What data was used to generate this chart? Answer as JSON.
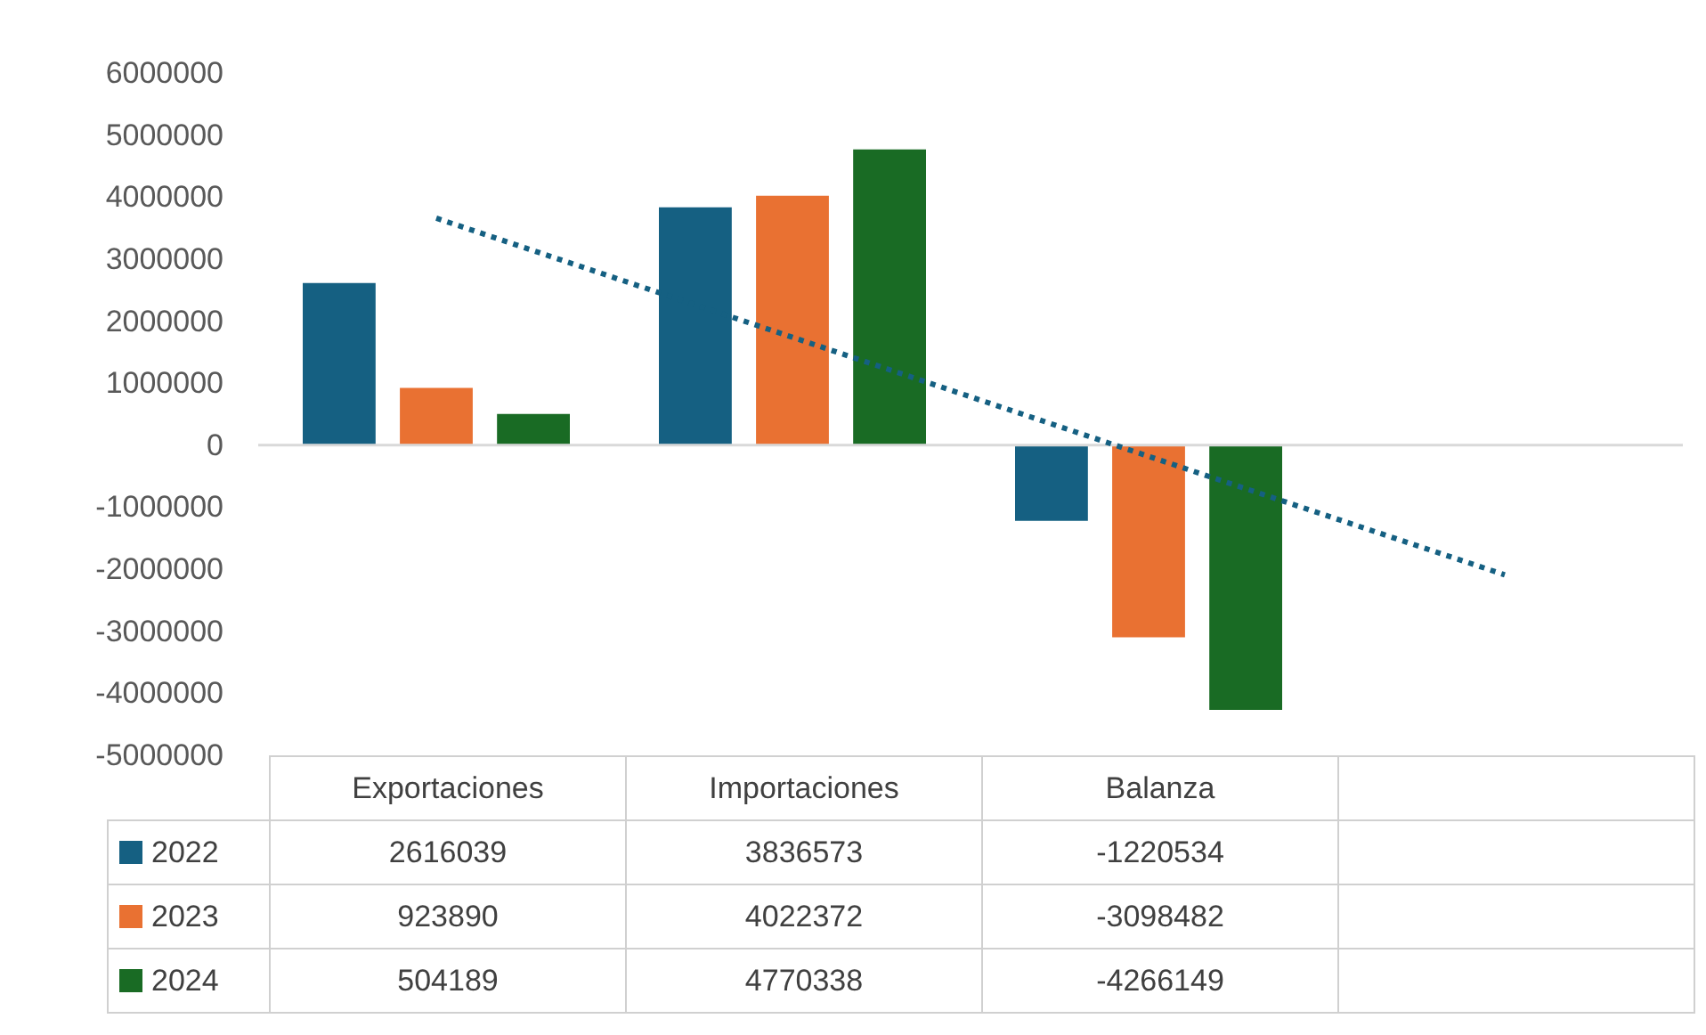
{
  "chart_data": {
    "type": "bar",
    "categories": [
      "Exportaciones",
      "Importaciones",
      "Balanza",
      null
    ],
    "series": [
      {
        "name": "2022",
        "color": "#156082",
        "values": [
          2616039,
          3836573,
          -1220534,
          null
        ],
        "value_labels": [
          "2616039",
          "3836573",
          "-1220534",
          null
        ]
      },
      {
        "name": "2023",
        "color": "#e97132",
        "values": [
          923890,
          4022372,
          -3098482,
          null
        ],
        "value_labels": [
          "923890",
          "4022372",
          "-3098482",
          null
        ]
      },
      {
        "name": "2024",
        "color": "#196b24",
        "values": [
          504189,
          4770338,
          -4266149,
          null
        ],
        "value_labels": [
          "504189",
          "4770338",
          "-4266149",
          null
        ]
      },
      {
        "type": "line",
        "color": "#156082",
        "line_style": "dotted",
        "values": [
          3660000,
          1740000,
          -180000,
          -2090000
        ]
      }
    ],
    "ylim": [
      -5000000,
      6000000
    ],
    "yticks": [
      -5000000,
      -4000000,
      -3000000,
      -2000000,
      -1000000,
      0,
      1000000,
      2000000,
      3000000,
      4000000,
      5000000,
      6000000
    ],
    "legend": "bottom"
  }
}
